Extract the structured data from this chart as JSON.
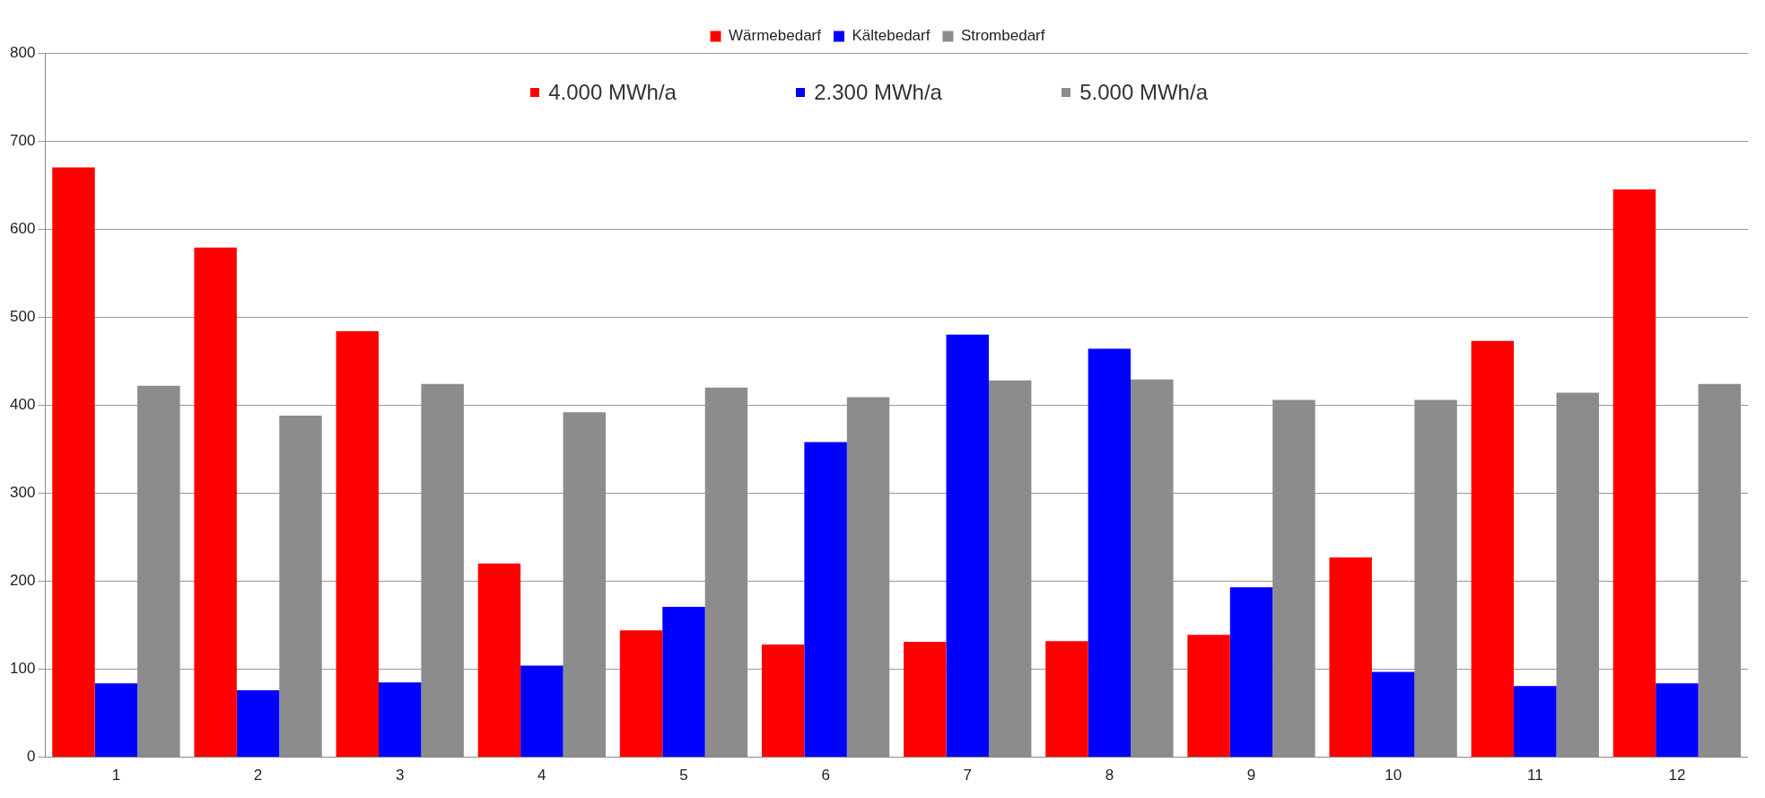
{
  "chart_data": {
    "type": "bar",
    "categories": [
      "1",
      "2",
      "3",
      "4",
      "5",
      "6",
      "7",
      "8",
      "9",
      "10",
      "11",
      "12"
    ],
    "series": [
      {
        "name": "Wärmebedarf",
        "color": "#ff0000",
        "values": [
          670,
          579,
          484,
          220,
          144,
          128,
          131,
          132,
          139,
          227,
          473,
          645
        ]
      },
      {
        "name": "Kältebedarf",
        "color": "#0000ff",
        "values": [
          84,
          76,
          85,
          104,
          171,
          358,
          480,
          464,
          193,
          97,
          81,
          84
        ]
      },
      {
        "name": "Strombedarf",
        "color": "#8c8c8c",
        "values": [
          422,
          388,
          424,
          392,
          420,
          409,
          428,
          429,
          406,
          406,
          414,
          424
        ]
      }
    ],
    "annotations": [
      "4.000 MWh/a",
      "2.300 MWh/a",
      "5.000 MWh/a"
    ],
    "ylim": [
      0,
      800
    ],
    "yticks": [
      0,
      100,
      200,
      300,
      400,
      500,
      600,
      700,
      800
    ],
    "grid": "y",
    "legend": "top"
  }
}
